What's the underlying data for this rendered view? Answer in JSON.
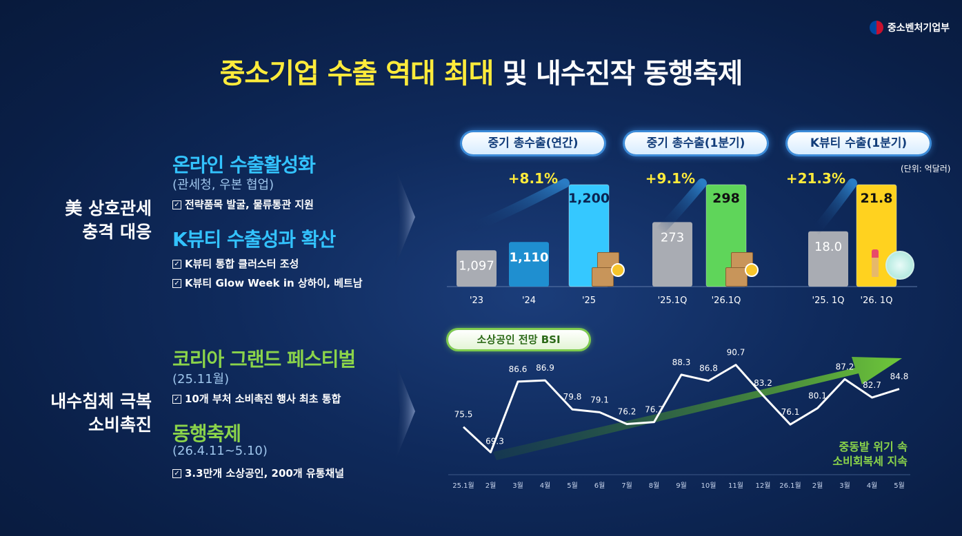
{
  "ministry": "중소벤처기업부",
  "title": {
    "highlight": "중소기업 수출 역대 최대",
    "rest": " 및 내수진작 동행축제"
  },
  "section1": {
    "label_line1": "美 상호관세",
    "label_line2": "충격 대응",
    "item1_title": "온라인 수출활성화",
    "item1_sub": "(관세청, 우본 협업)",
    "item1_bullet": "전략품목 발굴, 물류통관 지원",
    "item2_title": "K뷰티 수출성과 확산",
    "item2_bullet1": "K뷰티 통합 클러스터 조성",
    "item2_bullet2": "K뷰티 Glow Week in 상하이, 베트남"
  },
  "section2": {
    "label_line1": "내수침체 극복",
    "label_line2": "소비촉진",
    "item1_title": "코리아 그랜드 페스티벌",
    "item1_sub": "(25.11월)",
    "item1_bullet": "10개 부처 소비촉진 행사 최초 통합",
    "item2_title": "동행축제",
    "item2_sub": "(26.4.11~5.10)",
    "item2_bullet": "3.3만개 소상공인, 200개 유통채널"
  },
  "check_glyph": "✓",
  "unit": "(단위: 억달러)",
  "chart_data": [
    {
      "type": "bar",
      "title": "중기 총수출(연간)",
      "categories": [
        "'23",
        "'24",
        "'25"
      ],
      "values": [
        1097,
        1110,
        1200
      ],
      "value_labels": [
        "1,097",
        "1,110",
        "1,200"
      ],
      "growth": "+8.1%",
      "colors": [
        "#a9acb3",
        "#1f8fd0",
        "#35c8ff"
      ]
    },
    {
      "type": "bar",
      "title": "중기 총수출(1분기)",
      "categories": [
        "'25.1Q",
        "'26.1Q"
      ],
      "values": [
        273,
        298
      ],
      "value_labels": [
        "273",
        "298"
      ],
      "growth": "+9.1%",
      "colors": [
        "#a9acb3",
        "#5fd55a"
      ]
    },
    {
      "type": "bar",
      "title": "K뷰티 수출(1분기)",
      "categories": [
        "'25. 1Q",
        "'26. 1Q"
      ],
      "values": [
        18.0,
        21.8
      ],
      "value_labels": [
        "18.0",
        "21.8"
      ],
      "growth": "+21.3%",
      "colors": [
        "#a9acb3",
        "#ffd21f"
      ]
    },
    {
      "type": "line",
      "title": "소상공인 전망 BSI",
      "categories": [
        "25.1월",
        "2월",
        "3월",
        "4월",
        "5월",
        "6월",
        "7월",
        "8월",
        "9월",
        "10월",
        "11월",
        "12월",
        "26.1월",
        "2월",
        "3월",
        "4월",
        "5월"
      ],
      "values": [
        75.5,
        69.3,
        86.6,
        86.9,
        79.8,
        79.1,
        76.2,
        76.7,
        88.3,
        86.8,
        90.7,
        83.2,
        76.1,
        80.1,
        87.2,
        82.7,
        84.8
      ],
      "value_labels": [
        "75.5",
        "69.3",
        "86.6",
        "86.9",
        "79.8",
        "79.1",
        "76.2",
        "76.7",
        "88.3",
        "86.8",
        "90.7",
        "83.2",
        "76.1",
        "80.1",
        "87.2",
        "82.7",
        "84.8"
      ],
      "note_line1": "중동발 위기 속",
      "note_line2": "소비회복세 지속"
    }
  ]
}
